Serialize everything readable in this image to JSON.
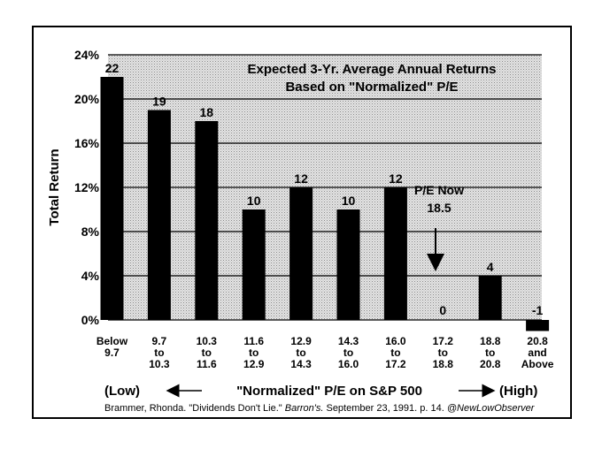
{
  "chart_data": {
    "type": "bar",
    "title": [
      "Expected 3-Yr. Average Annual Returns",
      "Based on \"Normalized\" P/E"
    ],
    "ylabel": "Total Return",
    "xlabel": "\"Normalized\" P/E on S&P 500",
    "xlabel_left": "(Low)",
    "xlabel_right": "(High)",
    "categories": [
      [
        "Below",
        "9.7"
      ],
      [
        "9.7",
        "to",
        "10.3"
      ],
      [
        "10.3",
        "to",
        "11.6"
      ],
      [
        "11.6",
        "to",
        "12.9"
      ],
      [
        "12.9",
        "to",
        "14.3"
      ],
      [
        "14.3",
        "to",
        "16.0"
      ],
      [
        "16.0",
        "to",
        "17.2"
      ],
      [
        "17.2",
        "to",
        "18.8"
      ],
      [
        "18.8",
        "to",
        "20.8"
      ],
      [
        "20.8",
        "and",
        "Above"
      ]
    ],
    "values": [
      22,
      19,
      18,
      10,
      12,
      10,
      12,
      0,
      4,
      -1
    ],
    "color": "#000000",
    "ylim": [
      0,
      24
    ],
    "yticks": [
      {
        "value": 0,
        "label": "0%"
      },
      {
        "value": 4,
        "label": "4%"
      },
      {
        "value": 8,
        "label": "8%"
      },
      {
        "value": 12,
        "label": "12%"
      },
      {
        "value": 16,
        "label": "16%"
      },
      {
        "value": 20,
        "label": "20%"
      },
      {
        "value": 24,
        "label": "24%"
      }
    ],
    "grid": true,
    "annotation": [
      "P/E Now",
      "18.5"
    ],
    "source": [
      "Brammer, Rhonda. \"Dividends Don't Lie.\" ",
      "Barron's.",
      " September 23, 1991. p. 14. ",
      "@NewLowObserver"
    ]
  }
}
